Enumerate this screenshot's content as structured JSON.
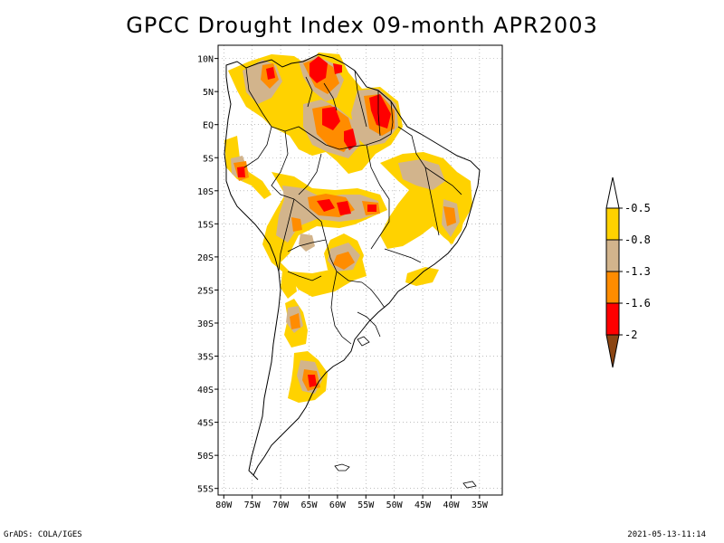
{
  "title": "GPCC Drought Index 09-month APR2003",
  "map": {
    "lat_labels": [
      "10N",
      "5N",
      "EQ",
      "5S",
      "10S",
      "15S",
      "20S",
      "25S",
      "30S",
      "35S",
      "40S",
      "45S",
      "50S",
      "55S"
    ],
    "lon_labels": [
      "80W",
      "75W",
      "70W",
      "65W",
      "60W",
      "55W",
      "50W",
      "45W",
      "40W",
      "35W"
    ],
    "grid": true
  },
  "colorbar": {
    "levels": [
      {
        "label": "-0.5",
        "color": "#ffd200"
      },
      {
        "label": "-0.8",
        "color": "#d2b48c"
      },
      {
        "label": "-1.3",
        "color": "#ff8c00"
      },
      {
        "label": "-1.6",
        "color": "#ff0000"
      },
      {
        "label": "-2",
        "color": "#8b4513"
      }
    ],
    "top_color": "#ffffff",
    "colors": {
      "yellow": "#ffd200",
      "tan": "#d2b48c",
      "orange": "#ff8c00",
      "red": "#ff0000",
      "brown": "#8b4513"
    }
  },
  "footer": {
    "left": "GrADS: COLA/IGES",
    "right": "2021-05-13-11:14"
  }
}
